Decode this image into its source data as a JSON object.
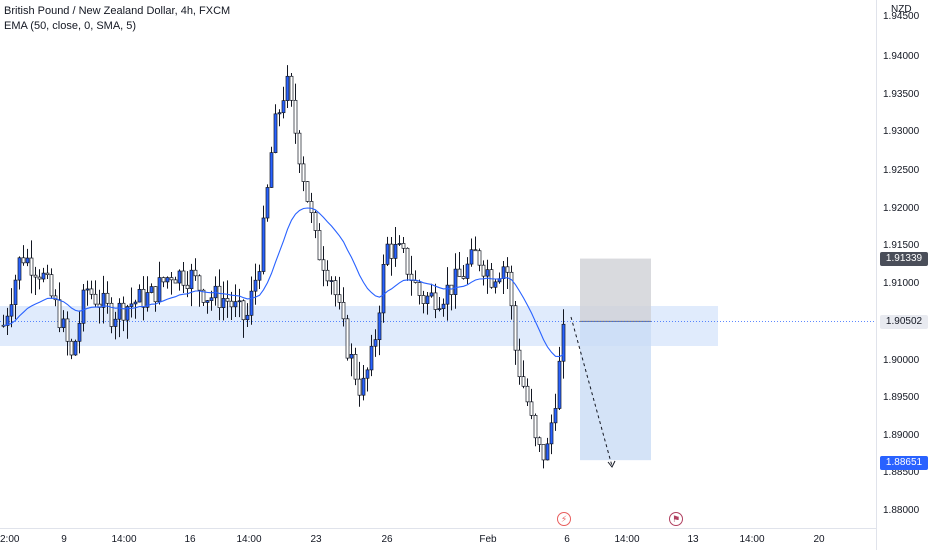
{
  "legend": {
    "title": "British Pound / New Zealand Dollar, 4h, FXCM",
    "indicator": "EMA (50, close, 0, SMA, 5)"
  },
  "price_axis": {
    "currency": "NZD",
    "ticks": [
      "1.94500",
      "1.94000",
      "1.93500",
      "1.93000",
      "1.92500",
      "1.92000",
      "1.91500",
      "1.91000",
      "1.90000",
      "1.89500",
      "1.89000",
      "1.88500",
      "1.88000"
    ],
    "tags": {
      "stop": "1.91339",
      "current": "1.90502",
      "target": "1.88651"
    }
  },
  "time_axis": {
    "ticks": [
      "2:00",
      "9",
      "14:00",
      "16",
      "14:00",
      "23",
      "26",
      "Feb",
      "6",
      "14:00",
      "13",
      "14:00",
      "20"
    ]
  },
  "events": [
    {
      "icon": "lightning-icon",
      "glyph": "⚡"
    },
    {
      "icon": "flag-icon",
      "glyph": "⚑"
    }
  ],
  "colors": {
    "up": "#2962ff",
    "down": "#131722",
    "ema": "#2962ff",
    "zone": "#d6e4fb",
    "stop_zone": "#cfd1d6",
    "target_zone": "#c9dcf5",
    "current_tag": "#e8eaf0",
    "target_tag": "#2962ff",
    "stop_tag": "#4a4e59"
  }
}
